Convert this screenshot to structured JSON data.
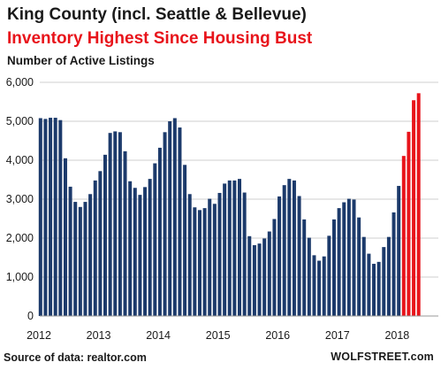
{
  "chart_data": {
    "type": "bar",
    "title": "King County (incl. Seattle & Bellevue)",
    "subtitle": "Inventory Highest Since Housing Bust",
    "ylabel": "Number of Active Listings",
    "ylim": [
      0,
      6000
    ],
    "yticks": [
      0,
      1000,
      2000,
      3000,
      4000,
      5000,
      6000
    ],
    "ytick_labels": [
      "0",
      "1,000",
      "2,000",
      "3,000",
      "4,000",
      "5,000",
      "6,000"
    ],
    "xtick_labels": [
      "2012",
      "2013",
      "2014",
      "2015",
      "2016",
      "2017",
      "2018"
    ],
    "grid": true,
    "bar_color": "#1c3a6b",
    "highlight_color": "#e8141b",
    "values": [
      5080,
      5060,
      5090,
      5090,
      5030,
      4050,
      3320,
      2930,
      2800,
      2930,
      3130,
      3480,
      3720,
      4140,
      4700,
      4740,
      4720,
      4230,
      3460,
      3290,
      3110,
      3310,
      3520,
      3920,
      4320,
      4720,
      5000,
      5080,
      4840,
      3880,
      3130,
      2790,
      2720,
      2770,
      3010,
      2880,
      3160,
      3400,
      3480,
      3480,
      3520,
      3170,
      2050,
      1820,
      1860,
      1990,
      2170,
      2490,
      3070,
      3360,
      3520,
      3480,
      3080,
      2480,
      2010,
      1560,
      1420,
      1530,
      2060,
      2480,
      2770,
      2920,
      3010,
      2990,
      2530,
      2030,
      1600,
      1340,
      1390,
      1770,
      2030,
      2660,
      3340,
      4110,
      4730,
      5540,
      5720
    ],
    "highlight_from_index": 73
  },
  "header": {
    "title": "King County (incl. Seattle & Bellevue)",
    "subtitle": "Inventory Highest Since Housing Bust",
    "ylabel": "Number of Active Listings"
  },
  "footer": {
    "source": "Source of data: realtor.com",
    "credit": "WOLFSTREET.com"
  }
}
